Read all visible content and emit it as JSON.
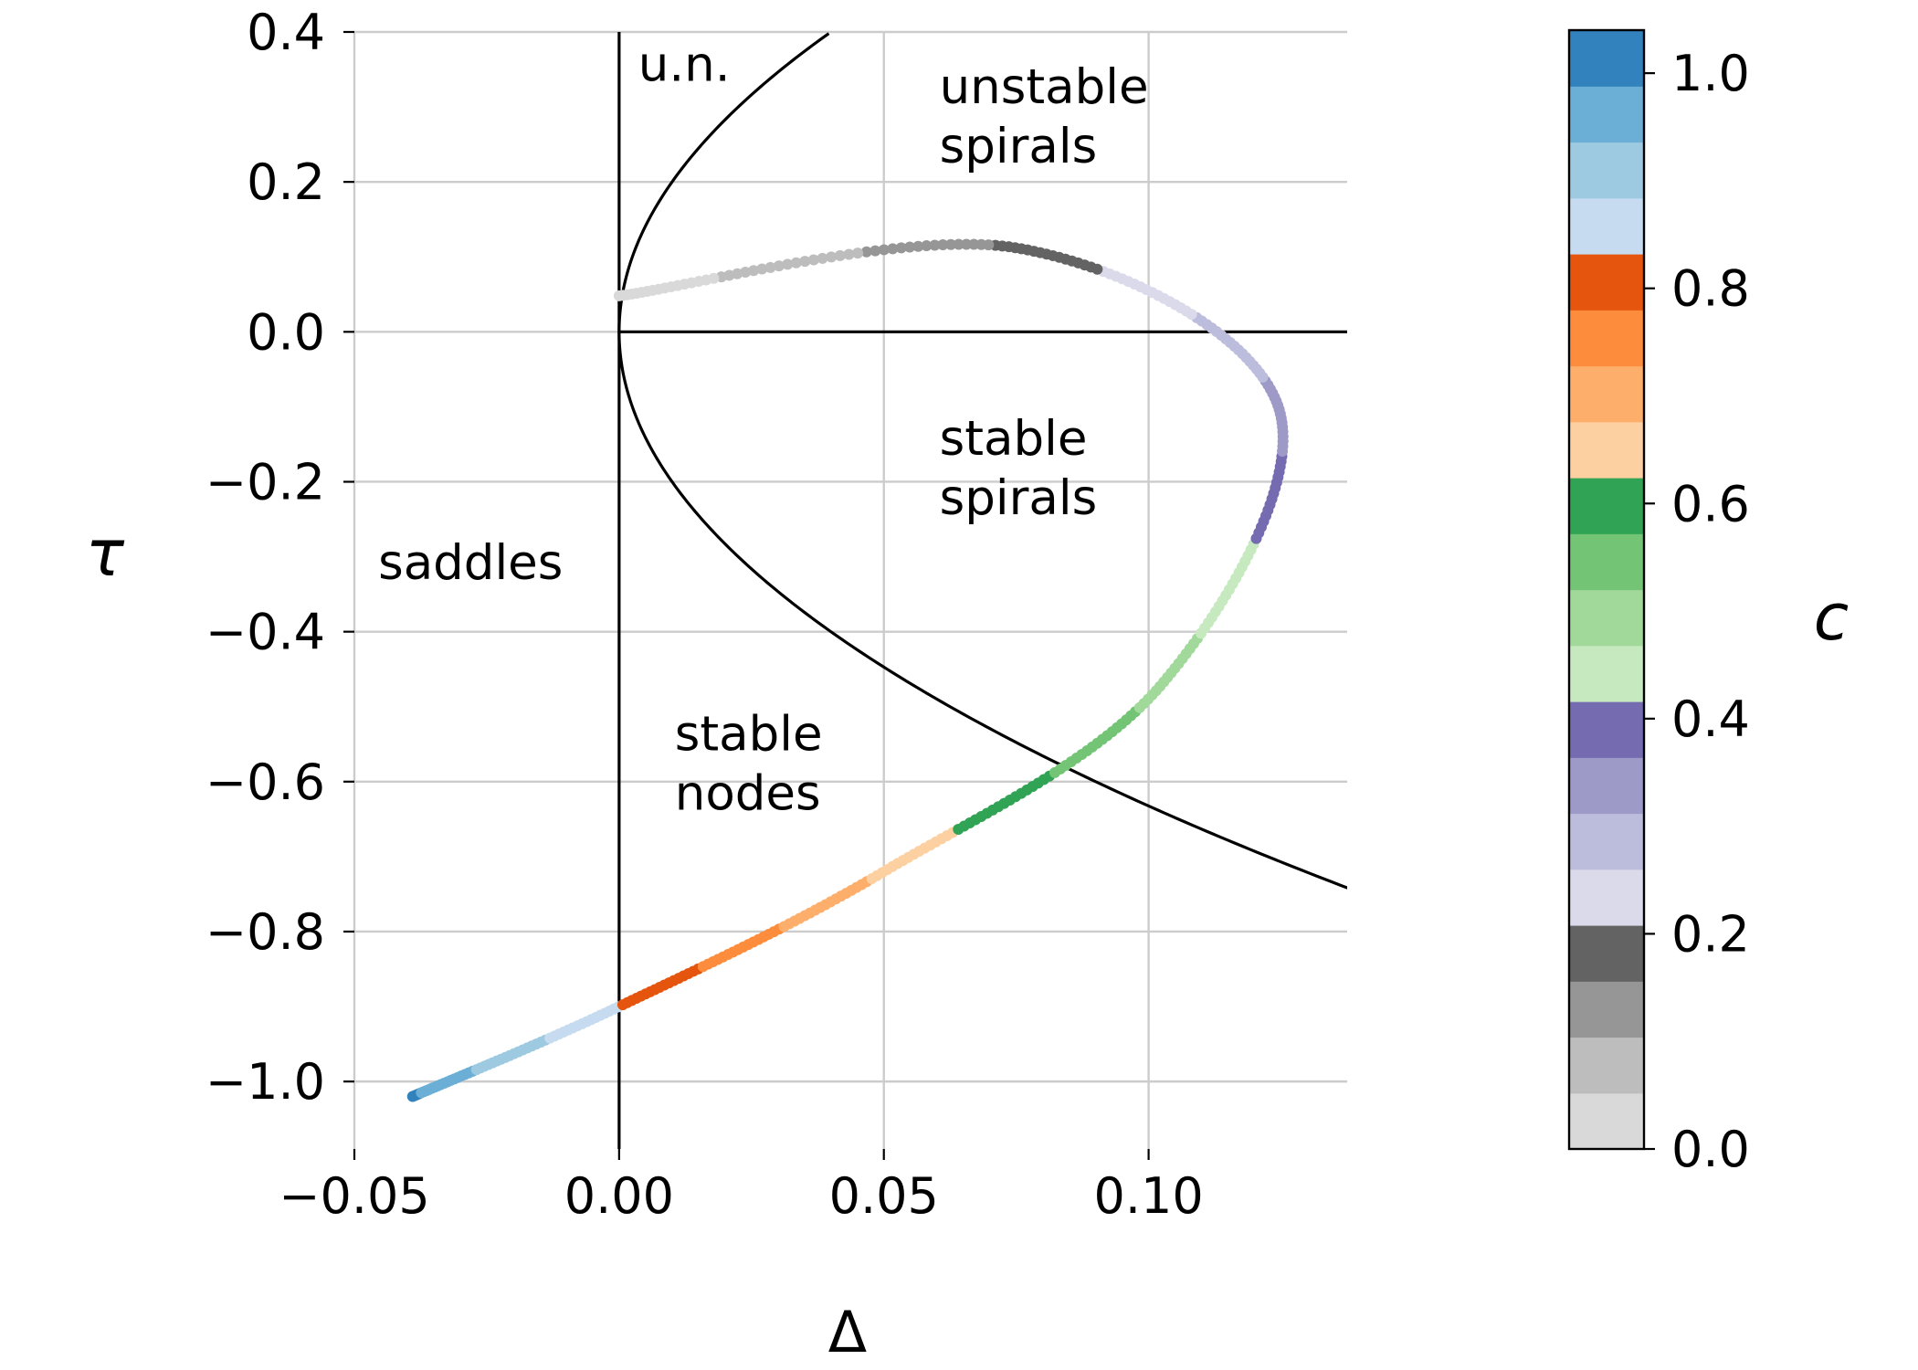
{
  "chart_data": {
    "type": "scatter",
    "xlabel": "Δ",
    "ylabel": "τ",
    "xlim": [
      -0.05,
      0.1375
    ],
    "ylim": [
      -1.09,
      0.4
    ],
    "x_ticks": [
      -0.05,
      0.0,
      0.05,
      0.1
    ],
    "x_tick_labels": [
      "−0.05",
      "0.00",
      "0.05",
      "0.10"
    ],
    "y_ticks": [
      0.4,
      0.2,
      0.0,
      -0.2,
      -0.4,
      -0.6,
      -0.8,
      -1.0
    ],
    "y_tick_labels": [
      "0.4",
      "0.2",
      "0.0",
      "−0.2",
      "−0.4",
      "−0.6",
      "−0.8",
      "−1.0"
    ],
    "grid": true,
    "region_labels": [
      {
        "name": "un",
        "lines": [
          "u.n."
        ],
        "x": 0.0036,
        "y": 0.335
      },
      {
        "name": "unstable-spirals",
        "lines": [
          "unstable",
          "spirals"
        ],
        "x": 0.0605,
        "y": 0.305
      },
      {
        "name": "stable-spirals",
        "lines": [
          "stable",
          "spirals"
        ],
        "x": 0.0605,
        "y": -0.164
      },
      {
        "name": "saddles",
        "lines": [
          "saddles"
        ],
        "x": -0.0455,
        "y": -0.33
      },
      {
        "name": "stable-nodes",
        "lines": [
          "stable",
          "nodes"
        ],
        "x": 0.0105,
        "y": -0.558
      }
    ],
    "boundaries": {
      "delta_zero_line": {
        "x": 0.0
      },
      "tau_zero_line": {
        "y": 0.0,
        "x_from": 0.0
      },
      "parabola": "tau^2 = 4*Delta"
    },
    "trajectory": {
      "parameter": "c",
      "c_range": [
        0.0,
        1.0
      ],
      "description_points": [
        {
          "x": -0.039,
          "y": -1.02
        },
        {
          "x": 0.0,
          "y": -0.9
        },
        {
          "x": 0.05,
          "y": -0.72
        },
        {
          "x": 0.1025,
          "y": -0.47
        },
        {
          "x": 0.1245,
          "y": -0.1
        },
        {
          "x": 0.075,
          "y": 0.112
        },
        {
          "x": 0.0,
          "y": 0.048
        }
      ]
    },
    "colorbar": {
      "label": "c",
      "range": [
        0.0,
        1.04
      ],
      "ticks": [
        0.0,
        0.2,
        0.4,
        0.6,
        0.8,
        1.0
      ],
      "tick_labels": [
        "0.0",
        "0.2",
        "0.4",
        "0.6",
        "0.8",
        "1.0"
      ],
      "bins": 20,
      "colors": [
        "#d9d9d9",
        "#bdbdbd",
        "#969696",
        "#636363",
        "#dadaeb",
        "#bcbddc",
        "#9e9ac8",
        "#756bb1",
        "#c7e9c0",
        "#a1d99b",
        "#74c476",
        "#31a354",
        "#fdd0a2",
        "#fdae6b",
        "#fd8d3c",
        "#e6550d",
        "#c6dbef",
        "#9ecae1",
        "#6baed6",
        "#3182bd"
      ]
    }
  }
}
